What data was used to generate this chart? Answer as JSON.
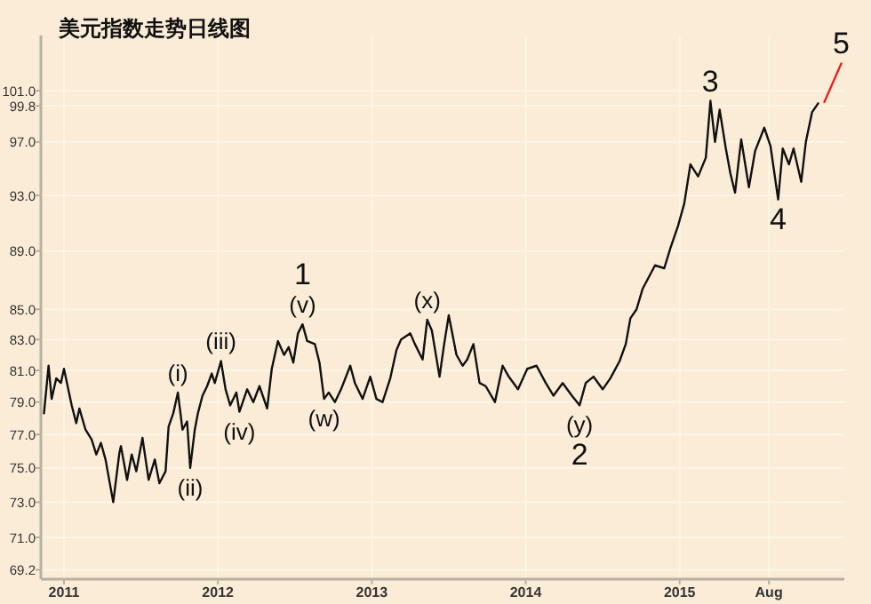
{
  "chart_data": {
    "type": "line",
    "title": "美元指数走势日线图",
    "log": true,
    "grid": true,
    "xlim": [
      2010.85,
      2016.07
    ],
    "ylim": [
      68.7,
      105.5
    ],
    "xticks": [
      2011,
      2012,
      2013,
      2014,
      2015,
      {
        "value": 2015.58,
        "label": "Aug"
      }
    ],
    "yticks": [
      69.2,
      {
        "value": 71,
        "label": "71.0"
      },
      {
        "value": 73,
        "label": "73.0"
      },
      {
        "value": 75,
        "label": "75.0"
      },
      {
        "value": 77,
        "label": "77.0"
      },
      {
        "value": 79,
        "label": "79.0"
      },
      {
        "value": 81,
        "label": "81.0"
      },
      {
        "value": 83,
        "label": "83.0"
      },
      {
        "value": 85,
        "label": "85.0"
      },
      {
        "value": 89,
        "label": "89.0"
      },
      {
        "value": 93,
        "label": "93.0"
      },
      {
        "value": 97,
        "label": "97.0"
      },
      99.8,
      {
        "value": 101,
        "label": "101.0"
      }
    ],
    "series": [
      {
        "color": "#111111",
        "x": [
          2010.87,
          2010.9,
          2010.92,
          2010.95,
          2010.98,
          2011.0,
          2011.05,
          2011.08,
          2011.1,
          2011.14,
          2011.18,
          2011.21,
          2011.24,
          2011.27,
          2011.32,
          2011.36,
          2011.37,
          2011.41,
          2011.44,
          2011.47,
          2011.51,
          2011.55,
          2011.59,
          2011.62,
          2011.66,
          2011.68,
          2011.71,
          2011.74,
          2011.77,
          2011.8,
          2011.82,
          2011.85,
          2011.87,
          2011.9,
          2011.93,
          2011.96,
          2011.98,
          2012.02,
          2012.05,
          2012.08,
          2012.12,
          2012.14,
          2012.19,
          2012.23,
          2012.27,
          2012.32,
          2012.35,
          2012.39,
          2012.43,
          2012.46,
          2012.49,
          2012.52,
          2012.55,
          2012.58,
          2012.63,
          2012.66,
          2012.69,
          2012.72,
          2012.76,
          2012.8,
          2012.86,
          2012.89,
          2012.94,
          2012.99,
          2013.03,
          2013.07,
          2013.12,
          2013.16,
          2013.19,
          2013.25,
          2013.28,
          2013.33,
          2013.36,
          2013.39,
          2013.44,
          2013.47,
          2013.5,
          2013.55,
          2013.59,
          2013.62,
          2013.66,
          2013.7,
          2013.74,
          2013.8,
          2013.85,
          2013.89,
          2013.95,
          2014.01,
          2014.07,
          2014.13,
          2014.18,
          2014.24,
          2014.3,
          2014.35,
          2014.39,
          2014.44,
          2014.5,
          2014.55,
          2014.61,
          2014.65,
          2014.68,
          2014.72,
          2014.76,
          2014.84,
          2014.9,
          2014.94,
          2014.99,
          2015.03,
          2015.07,
          2015.12,
          2015.17,
          2015.2,
          2015.23,
          2015.26,
          2015.3,
          2015.33,
          2015.36,
          2015.4,
          2015.45,
          2015.49,
          2015.55,
          2015.59,
          2015.64,
          2015.67,
          2015.71,
          2015.74,
          2015.79,
          2015.82,
          2015.86,
          2015.9
        ],
        "values": [
          78.3,
          81.3,
          79.2,
          80.5,
          80.2,
          81.1,
          78.8,
          77.7,
          78.6,
          77.3,
          76.7,
          75.8,
          76.5,
          75.5,
          73.0,
          75.9,
          76.3,
          74.3,
          75.8,
          74.8,
          76.8,
          74.3,
          75.5,
          74.1,
          74.8,
          77.5,
          78.3,
          79.6,
          77.3,
          77.8,
          75.0,
          77.3,
          78.3,
          79.4,
          80.0,
          80.8,
          80.2,
          81.6,
          79.8,
          78.8,
          79.6,
          78.4,
          79.8,
          79.0,
          80.0,
          78.6,
          81.1,
          82.9,
          82.0,
          82.5,
          81.5,
          83.4,
          84.0,
          82.9,
          82.7,
          81.5,
          79.2,
          79.6,
          79.0,
          79.8,
          81.3,
          80.2,
          79.2,
          80.6,
          79.2,
          79.0,
          80.5,
          82.3,
          83.0,
          83.4,
          82.7,
          81.7,
          84.3,
          83.6,
          80.6,
          82.7,
          84.6,
          82.0,
          81.3,
          81.7,
          82.7,
          80.2,
          80.0,
          79.0,
          81.3,
          80.6,
          79.8,
          81.1,
          81.3,
          80.2,
          79.4,
          80.2,
          79.4,
          78.8,
          80.2,
          80.6,
          79.8,
          80.5,
          81.6,
          82.7,
          84.4,
          85.0,
          86.4,
          88.0,
          87.8,
          89.2,
          90.8,
          92.4,
          95.3,
          94.4,
          95.8,
          100.2,
          97.0,
          99.5,
          96.5,
          94.6,
          93.2,
          97.2,
          93.6,
          96.3,
          98.1,
          96.7,
          92.7,
          96.5,
          95.3,
          96.5,
          94.0,
          97.0,
          99.3,
          100.0
        ]
      },
      {
        "color": "#e8231f",
        "x": [
          2015.94,
          2016.05
        ],
        "values": [
          100.1,
          103.2
        ]
      }
    ],
    "annotations": [
      {
        "text": "(i)",
        "x": 2011.74,
        "y": 79.6
      },
      {
        "text": "(ii)",
        "x": 2011.82,
        "y": 75.0
      },
      {
        "text": "(iii)",
        "x": 2012.02,
        "y": 81.6
      },
      {
        "text": "(iv)",
        "x": 2012.14,
        "y": 78.4
      },
      {
        "text": "(v)",
        "x": 2012.55,
        "y": 84.0
      },
      {
        "text": "1",
        "x": 2012.55,
        "y": 84.0
      },
      {
        "text": "(w)",
        "x": 2012.69,
        "y": 79.2
      },
      {
        "text": "(x)",
        "x": 2013.36,
        "y": 84.3
      },
      {
        "text": "(y)",
        "x": 2014.35,
        "y": 78.8
      },
      {
        "text": "2",
        "x": 2014.35,
        "y": 78.8
      },
      {
        "text": "3",
        "x": 2015.2,
        "y": 100.2
      },
      {
        "text": "4",
        "x": 2015.64,
        "y": 92.7
      },
      {
        "text": "5",
        "x": 2016.05,
        "y": 103.2
      }
    ]
  }
}
